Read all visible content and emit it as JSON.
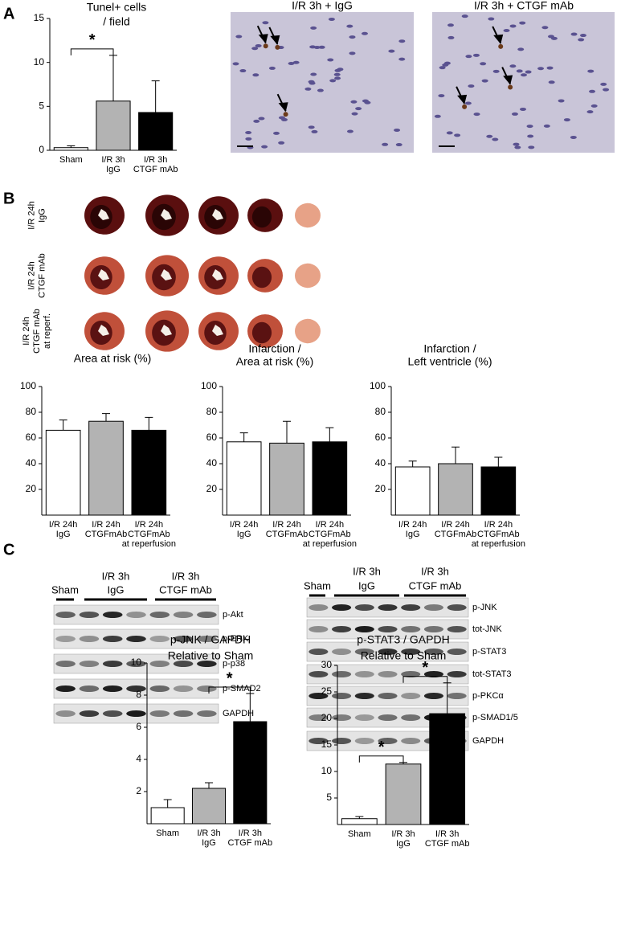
{
  "panel_labels": [
    "A",
    "B",
    "C"
  ],
  "micrographs": [
    {
      "title": "I/R 3h + IgG"
    },
    {
      "title": "I/R 3h + CTGF mAb"
    }
  ],
  "heart_rows": [
    [
      "I/R 24h",
      "IgG"
    ],
    [
      "I/R 24h",
      "CTGF mAb"
    ],
    [
      "I/R 24h",
      "CTGF mAb",
      "at reperf."
    ]
  ],
  "blots": [
    {
      "groups": [
        [
          "Sham"
        ],
        [
          "I/R 3h",
          "IgG"
        ],
        [
          "I/R 3h",
          "CTGF mAb"
        ]
      ],
      "rows": [
        "p-Akt",
        "p-ERK",
        "p-p38",
        "p-SMAD2",
        "GAPDH"
      ]
    },
    {
      "groups": [
        [
          "Sham"
        ],
        [
          "I/R 3h",
          "IgG"
        ],
        [
          "I/R 3h",
          "CTGF mAb"
        ]
      ],
      "rows": [
        "p-JNK",
        "tot-JNK",
        "p-STAT3",
        "tot-STAT3",
        "p-PKCα",
        "p-SMAD1/5",
        "GAPDH"
      ]
    }
  ],
  "chart_data": [
    {
      "type": "bar",
      "title": [
        "Tunel+ cells",
        "/ field"
      ],
      "categories": [
        [
          "Sham"
        ],
        [
          "I/R 3h",
          "IgG"
        ],
        [
          "I/R 3h",
          "CTGF mAb"
        ]
      ],
      "values": [
        0.3,
        5.6,
        4.3
      ],
      "errors": [
        0.2,
        5.2,
        3.6
      ],
      "colors": [
        "#ffffff",
        "#b3b3b3",
        "#000000"
      ],
      "ylim": [
        0,
        15
      ],
      "yticks": [
        0,
        5,
        10,
        15
      ],
      "significance": [
        {
          "from": 0,
          "to": 1,
          "label": "*"
        }
      ]
    },
    {
      "type": "bar",
      "title": [
        "Area at risk (%)"
      ],
      "categories": [
        [
          "I/R 24h",
          "IgG"
        ],
        [
          "I/R 24h",
          "CTGFmAb"
        ],
        [
          "I/R 24h",
          "CTGFmAb",
          "at reperfusion"
        ]
      ],
      "values": [
        66,
        73,
        66
      ],
      "errors": [
        8,
        6,
        10
      ],
      "colors": [
        "#ffffff",
        "#b3b3b3",
        "#000000"
      ],
      "ylim": [
        0,
        100
      ],
      "yticks": [
        20,
        40,
        60,
        80,
        100
      ]
    },
    {
      "type": "bar",
      "title": [
        "Infarction /",
        "Area at risk (%)"
      ],
      "categories": [
        [
          "I/R 24h",
          "IgG"
        ],
        [
          "I/R 24h",
          "CTGFmAb"
        ],
        [
          "I/R 24h",
          "CTGFmAb",
          "at reperfusion"
        ]
      ],
      "values": [
        57,
        56,
        57
      ],
      "errors": [
        7,
        17,
        11
      ],
      "colors": [
        "#ffffff",
        "#b3b3b3",
        "#000000"
      ],
      "ylim": [
        0,
        100
      ],
      "yticks": [
        20,
        40,
        60,
        80,
        100
      ]
    },
    {
      "type": "bar",
      "title": [
        "Infarction /",
        "Left ventricle (%)"
      ],
      "categories": [
        [
          "I/R 24h",
          "IgG"
        ],
        [
          "I/R 24h",
          "CTGFmAb"
        ],
        [
          "I/R 24h",
          "CTGFmAb",
          "at reperfusion"
        ]
      ],
      "values": [
        37.5,
        40,
        37.5
      ],
      "errors": [
        4.5,
        13,
        7.5
      ],
      "colors": [
        "#ffffff",
        "#b3b3b3",
        "#000000"
      ],
      "ylim": [
        0,
        100
      ],
      "yticks": [
        20,
        40,
        60,
        80,
        100
      ]
    },
    {
      "type": "bar",
      "title": [
        "p-JNK / GAPDH",
        "Relative to Sham"
      ],
      "categories": [
        [
          "Sham"
        ],
        [
          "I/R 3h",
          "IgG"
        ],
        [
          "I/R 3h",
          "CTGF mAb"
        ]
      ],
      "values": [
        1.0,
        2.2,
        6.35
      ],
      "errors": [
        0.5,
        0.35,
        1.75
      ],
      "colors": [
        "#ffffff",
        "#b3b3b3",
        "#000000"
      ],
      "ylim": [
        0,
        10
      ],
      "yticks": [
        2,
        4,
        6,
        8,
        10
      ],
      "significance": [
        {
          "from": 1,
          "to": 2,
          "label": "*"
        }
      ]
    },
    {
      "type": "bar",
      "title": [
        "p-STAT3 / GAPDH",
        "Relative to Sham"
      ],
      "categories": [
        [
          "Sham"
        ],
        [
          "I/R 3h",
          "IgG"
        ],
        [
          "I/R 3h",
          "CTGF mAb"
        ]
      ],
      "values": [
        1.1,
        11.4,
        20.9
      ],
      "errors": [
        0.4,
        0.3,
        5.8
      ],
      "colors": [
        "#ffffff",
        "#b3b3b3",
        "#000000"
      ],
      "ylim": [
        0,
        30
      ],
      "yticks": [
        5,
        10,
        15,
        20,
        25,
        30
      ],
      "significance": [
        {
          "from": 0,
          "to": 1,
          "label": "*"
        },
        {
          "from": 1,
          "to": 2,
          "label": "*"
        }
      ]
    }
  ]
}
